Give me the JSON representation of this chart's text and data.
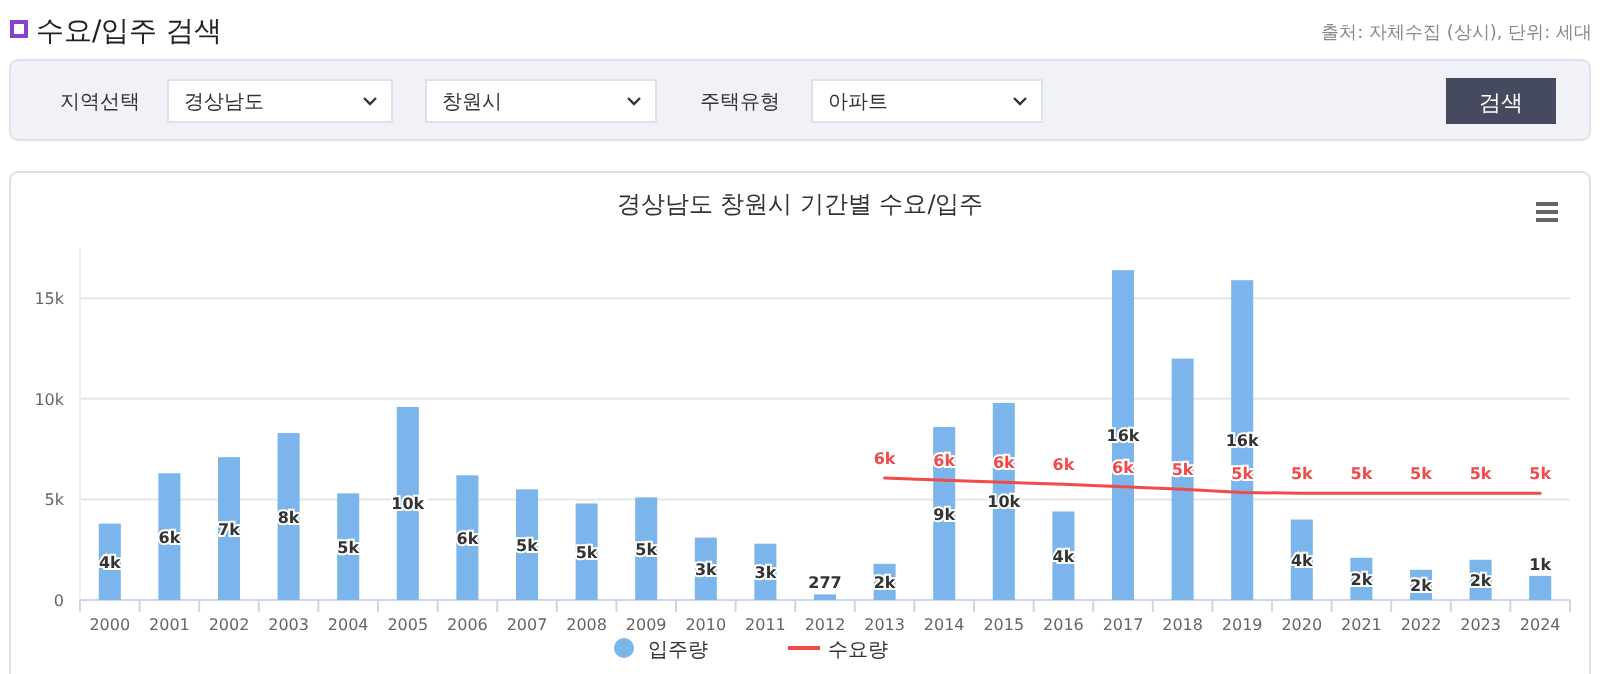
{
  "chart_data": {
    "type": "bar",
    "title": "경상남도 창원시 기간별 수요/입주",
    "annotations": [
      "수요/입주 검색",
      "출처: 자체수집 (상시), 단위: 세대",
      "지역선택",
      "경상남도",
      "창원시",
      "주택유형",
      "아파트",
      "검색"
    ],
    "categories": [
      "2000",
      "2001",
      "2002",
      "2003",
      "2004",
      "2005",
      "2006",
      "2007",
      "2008",
      "2009",
      "2010",
      "2011",
      "2012",
      "2013",
      "2014",
      "2015",
      "2016",
      "2017",
      "2018",
      "2019",
      "2020",
      "2021",
      "2022",
      "2023",
      "2024"
    ],
    "series": [
      {
        "name": "입주량",
        "color": "#7cb5ec",
        "values": [
          3800,
          6300,
          7100,
          8300,
          5300,
          9600,
          6200,
          5500,
          4800,
          5100,
          3100,
          2800,
          277,
          1800,
          8600,
          9800,
          4400,
          16400,
          12000,
          15900,
          4000,
          2100,
          1500,
          2000,
          1200
        ],
        "value_labels": [
          "4k",
          "6k",
          "7k",
          "8k",
          "5k",
          "10k",
          "6k",
          "5k",
          "5k",
          "5k",
          "3k",
          "3k",
          "277",
          "2k",
          "9k",
          "10k",
          "4k",
          "16k",
          null,
          "16k",
          "4k",
          "2k",
          "2k",
          "2k",
          "1k"
        ]
      },
      {
        "name": "수요량",
        "type": "line",
        "color": "#f04a4a",
        "values": [
          null,
          null,
          null,
          null,
          null,
          null,
          null,
          null,
          null,
          null,
          null,
          null,
          null,
          6070,
          5950,
          5850,
          5760,
          5630,
          5500,
          5340,
          5310,
          5310,
          5310,
          5310,
          5310
        ],
        "value_labels": [
          null,
          null,
          null,
          null,
          null,
          null,
          null,
          null,
          null,
          null,
          null,
          null,
          null,
          "6k",
          "6k",
          "6k",
          "6k",
          "6k",
          "5k",
          "5k",
          "5k",
          "5k",
          "5k",
          "5k",
          "5k"
        ]
      }
    ],
    "ylim": [
      0,
      17500
    ],
    "yticks": [
      0,
      {
        "value": 5000,
        "label": "5k"
      },
      {
        "value": 10000,
        "label": "10k"
      },
      {
        "value": 15000,
        "label": "15k"
      }
    ],
    "grid": "y",
    "legend": "bottom"
  }
}
